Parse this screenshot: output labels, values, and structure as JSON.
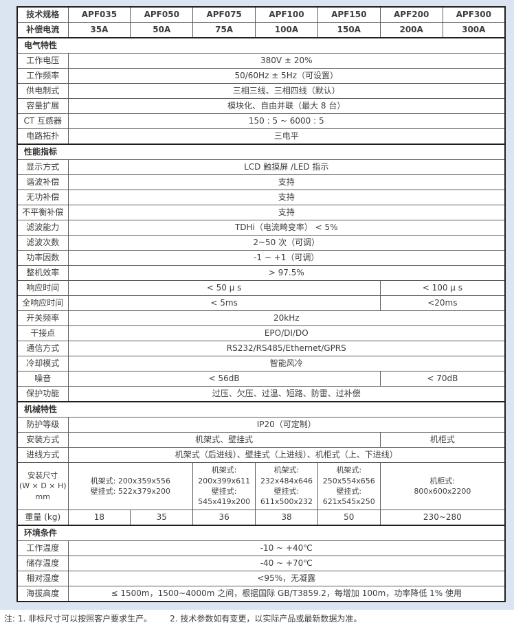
{
  "colors": {
    "page_background": "#dbe4f1",
    "cell_background": "#ffffff",
    "border_inner": "#5a5a5a",
    "border_outer": "#1f1f1f",
    "text": "#3d3d3d"
  },
  "table": {
    "rows": [
      {
        "type": "header",
        "label": "技术规格",
        "cells": [
          {
            "t": "APF035"
          },
          {
            "t": "APF050"
          },
          {
            "t": "APF075"
          },
          {
            "t": "APF100"
          },
          {
            "t": "APF150"
          },
          {
            "t": "APF200"
          },
          {
            "t": "APF300"
          }
        ]
      },
      {
        "type": "header",
        "label": "补偿电流",
        "cells": [
          {
            "t": "35A"
          },
          {
            "t": "50A"
          },
          {
            "t": "75A"
          },
          {
            "t": "100A"
          },
          {
            "t": "150A"
          },
          {
            "t": "200A"
          },
          {
            "t": "300A"
          }
        ]
      },
      {
        "type": "section",
        "label": "电气特性"
      },
      {
        "type": "row",
        "label": "工作电压",
        "cells": [
          {
            "t": "380V ± 20%",
            "span": 7
          }
        ]
      },
      {
        "type": "row",
        "label": "工作频率",
        "cells": [
          {
            "t": "50/60Hz ± 5Hz（可设置）",
            "span": 7
          }
        ]
      },
      {
        "type": "row",
        "label": "供电制式",
        "cells": [
          {
            "t": "三相三线、三相四线（默认）",
            "span": 7
          }
        ]
      },
      {
        "type": "row",
        "label": "容量扩展",
        "cells": [
          {
            "t": "模块化、自由并联（最大 8 台）",
            "span": 7
          }
        ]
      },
      {
        "type": "row",
        "label": "CT 互感器",
        "cells": [
          {
            "t": "150 : 5 ~ 6000 : 5",
            "span": 7
          }
        ]
      },
      {
        "type": "row",
        "label": "电路拓扑",
        "cells": [
          {
            "t": "三电平",
            "span": 7
          }
        ]
      },
      {
        "type": "section",
        "label": "性能指标"
      },
      {
        "type": "row",
        "label": "显示方式",
        "cells": [
          {
            "t": "LCD 触摸屏 /LED 指示",
            "span": 7
          }
        ]
      },
      {
        "type": "row",
        "label": "谐波补偿",
        "cells": [
          {
            "t": "支持",
            "span": 7
          }
        ]
      },
      {
        "type": "row",
        "label": "无功补偿",
        "cells": [
          {
            "t": "支持",
            "span": 7
          }
        ]
      },
      {
        "type": "row",
        "label": "不平衡补偿",
        "cells": [
          {
            "t": "支持",
            "span": 7
          }
        ]
      },
      {
        "type": "row",
        "label": "滤波能力",
        "cells": [
          {
            "t": "TDHi（电流畸变率） < 5%",
            "span": 7
          }
        ]
      },
      {
        "type": "row",
        "label": "滤波次数",
        "cells": [
          {
            "t": "2~50 次（可调）",
            "span": 7
          }
        ]
      },
      {
        "type": "row",
        "label": "功率因数",
        "cells": [
          {
            "t": "-1 ~ +1（可调）",
            "span": 7
          }
        ]
      },
      {
        "type": "row",
        "label": "整机效率",
        "cells": [
          {
            "t": "> 97.5%",
            "span": 7
          }
        ]
      },
      {
        "type": "row",
        "label": "响应时间",
        "cells": [
          {
            "t": "< 50 μ s",
            "span": 5
          },
          {
            "t": "< 100 μ s",
            "span": 2
          }
        ]
      },
      {
        "type": "row",
        "label": "全响应时间",
        "cells": [
          {
            "t": "< 5ms",
            "span": 5
          },
          {
            "t": "<20ms",
            "span": 2
          }
        ]
      },
      {
        "type": "row",
        "label": "开关频率",
        "cells": [
          {
            "t": "20kHz",
            "span": 7
          }
        ]
      },
      {
        "type": "row",
        "label": "干接点",
        "cells": [
          {
            "t": "EPO/DI/DO",
            "span": 7
          }
        ]
      },
      {
        "type": "row",
        "label": "通信方式",
        "cells": [
          {
            "t": "RS232/RS485/Ethernet/GPRS",
            "span": 7
          }
        ]
      },
      {
        "type": "row",
        "label": "冷却模式",
        "cells": [
          {
            "t": "智能风冷",
            "span": 7
          }
        ]
      },
      {
        "type": "row",
        "label": "噪音",
        "cells": [
          {
            "t": "< 56dB",
            "span": 5
          },
          {
            "t": "< 70dB",
            "span": 2
          }
        ]
      },
      {
        "type": "row",
        "label": "保护功能",
        "cells": [
          {
            "t": "过压、欠压、过温、短路、防雷、过补偿",
            "span": 7
          }
        ]
      },
      {
        "type": "section",
        "label": "机械特性"
      },
      {
        "type": "row",
        "label": "防护等级",
        "cells": [
          {
            "t": "IP20（可定制）",
            "span": 7
          }
        ]
      },
      {
        "type": "row",
        "label": "安装方式",
        "cells": [
          {
            "t": "机架式、壁挂式",
            "span": 5
          },
          {
            "t": "机柜式",
            "span": 2
          }
        ]
      },
      {
        "type": "row",
        "label": "进线方式",
        "cells": [
          {
            "t": "机架式（后进线）、壁挂式（上进线）、机柜式（上、下进线）",
            "span": 7
          }
        ]
      },
      {
        "type": "row",
        "tall": true,
        "label": "安装尺寸\n(W × D × H) mm",
        "cells": [
          {
            "t": "机架式:  200x359x556\n壁挂式:  522x379x200",
            "span": 2
          },
          {
            "t": "机架式:\n200x399x611\n壁挂式:\n545x419x200",
            "span": 1
          },
          {
            "t": "机架式:\n232x484x646\n壁挂式:\n611x500x232",
            "span": 1
          },
          {
            "t": "机架式:\n250x554x656\n壁挂式:\n621x545x250",
            "span": 1
          },
          {
            "t": "机柜式:\n800x600x2200",
            "span": 2
          }
        ]
      },
      {
        "type": "row",
        "label": "重量 (kg)",
        "cells": [
          {
            "t": "18"
          },
          {
            "t": "35"
          },
          {
            "t": "36"
          },
          {
            "t": "38"
          },
          {
            "t": "50"
          },
          {
            "t": "230~280",
            "span": 2
          }
        ]
      },
      {
        "type": "section",
        "label": "环境条件"
      },
      {
        "type": "row",
        "label": "工作温度",
        "cells": [
          {
            "t": "-10 ~ +40℃",
            "span": 7
          }
        ]
      },
      {
        "type": "row",
        "label": "储存温度",
        "cells": [
          {
            "t": "-40 ~ +70℃",
            "span": 7
          }
        ]
      },
      {
        "type": "row",
        "label": "相对湿度",
        "cells": [
          {
            "t": "<95%，无凝露",
            "span": 7
          }
        ]
      },
      {
        "type": "row",
        "label": "海拔高度",
        "cells": [
          {
            "t": "≤ 1500m，1500~4000m 之间，根据国际 GB/T3859.2，每增加 100m，功率降低 1% 使用",
            "span": 7
          }
        ]
      }
    ]
  },
  "note": {
    "label": "注:",
    "item1": "1. 非标尺寸可以按照客户要求生产。",
    "item2": "2. 技术参数如有变更，以实际产品或最新数据为准。"
  }
}
